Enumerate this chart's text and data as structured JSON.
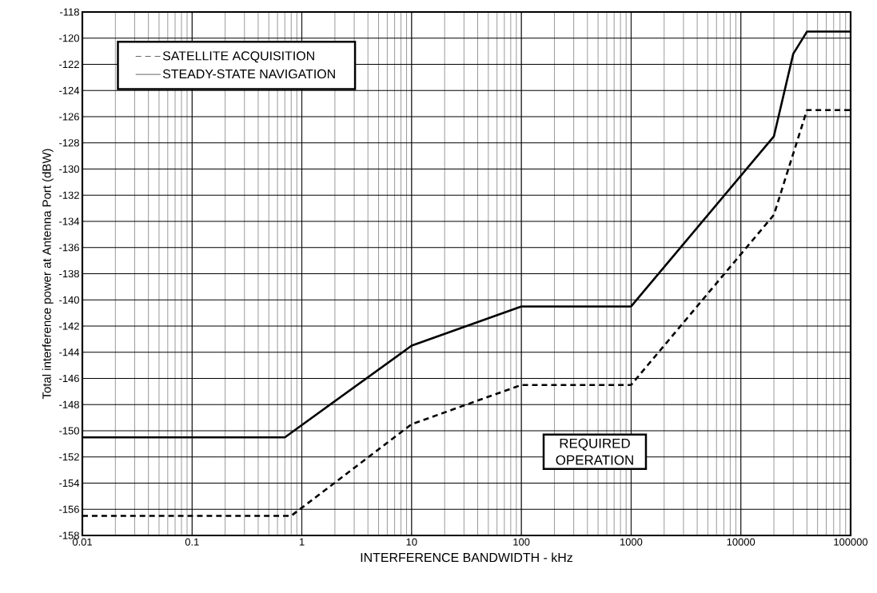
{
  "chart_data": {
    "type": "line",
    "xlabel": "INTERFERENCE BANDWIDTH - kHz",
    "ylabel": "Total interference power at Antenna Port (dBW)",
    "log": "x",
    "xlim": [
      0.01,
      100000
    ],
    "xticks": [
      0.01,
      0.1,
      1,
      10,
      100,
      1000,
      10000,
      100000
    ],
    "ylim": [
      -158,
      -118
    ],
    "yticks": [
      -158,
      -156,
      -154,
      -152,
      -150,
      -148,
      -146,
      -144,
      -142,
      -140,
      -138,
      -136,
      -134,
      -132,
      -130,
      -128,
      -126,
      -124,
      -122,
      -120,
      -118
    ],
    "grid": true,
    "legend": "top left",
    "series": [
      {
        "name": "SATELLITE ACQUISITION",
        "color": "#000000",
        "line_style": "dashed",
        "x": [
          0.01,
          0.8,
          10,
          100,
          1000,
          20000,
          40000,
          100000
        ],
        "values": [
          -156.5,
          -156.5,
          -149.5,
          -146.5,
          -146.5,
          -133.5,
          -125.5,
          -125.5
        ]
      },
      {
        "name": "STEADY-STATE NAVIGATION",
        "color": "#000000",
        "line_style": "solid",
        "x": [
          0.01,
          0.7,
          10,
          100,
          1000,
          20000,
          30000,
          40000,
          100000
        ],
        "values": [
          -150.5,
          -150.5,
          -143.5,
          -140.5,
          -140.5,
          -127.5,
          -121.2,
          -119.5,
          -119.5
        ]
      }
    ],
    "annotations": [
      "REQUIRED OPERATION"
    ]
  }
}
